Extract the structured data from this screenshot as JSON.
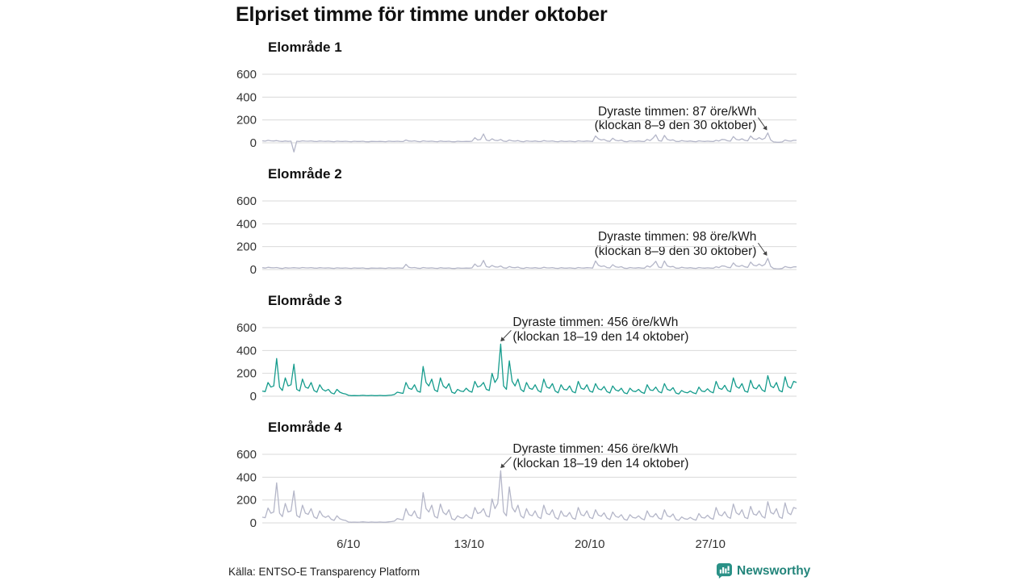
{
  "title": "Elpriset timme för timme under oktober",
  "source": "Källa: ENTSO-E Transparency Platform",
  "brand": {
    "name": "Newsworthy",
    "color": "#23857b",
    "icon": "bar-chart-speech-bubble"
  },
  "colors": {
    "line_gray": "#b4b6c8",
    "line_teal": "#169c8d",
    "grid": "#d9d9d9",
    "tick_text": "#333333",
    "annotation_text": "#1a1a1a"
  },
  "axis": {
    "yticks": [
      0,
      200,
      400,
      600
    ],
    "ylim": [
      0,
      600
    ],
    "total_hours": 744,
    "x_start": "1 oktober",
    "x_end": "31 oktober",
    "xticks": [
      {
        "label": "6/10",
        "hour": 120
      },
      {
        "label": "13/10",
        "hour": 288
      },
      {
        "label": "20/10",
        "hour": 456
      },
      {
        "label": "27/10",
        "hour": 624
      }
    ]
  },
  "chart_data": [
    {
      "type": "line",
      "title": "Elområde 1",
      "unit": "öre/kWh",
      "color_key": "line_gray",
      "hours_step": 4,
      "annotation": {
        "line1": "Dyraste timmen: 87 öre/kWh",
        "line2": "(klockan 8–9 den 30 oktober)",
        "peak_hour": 704,
        "peak_value": 87,
        "side": "right"
      },
      "values": [
        18,
        15,
        22,
        18,
        16,
        20,
        14,
        12,
        16,
        13,
        15,
        -80,
        14,
        12,
        18,
        15,
        14,
        17,
        13,
        11,
        16,
        14,
        13,
        15,
        12,
        10,
        15,
        13,
        12,
        14,
        11,
        10,
        14,
        12,
        12,
        14,
        10,
        9,
        13,
        12,
        11,
        13,
        11,
        10,
        15,
        13,
        12,
        14,
        12,
        11,
        25,
        16,
        14,
        18,
        12,
        10,
        18,
        14,
        13,
        15,
        11,
        10,
        16,
        13,
        12,
        14,
        10,
        9,
        14,
        12,
        11,
        13,
        12,
        14,
        45,
        25,
        30,
        78,
        25,
        18,
        35,
        22,
        20,
        30,
        15,
        12,
        25,
        18,
        15,
        20,
        12,
        10,
        18,
        14,
        13,
        16,
        12,
        11,
        20,
        15,
        14,
        17,
        11,
        10,
        16,
        13,
        12,
        15,
        12,
        10,
        18,
        14,
        13,
        16,
        14,
        12,
        60,
        35,
        25,
        30,
        16,
        13,
        40,
        22,
        18,
        24,
        12,
        10,
        18,
        14,
        13,
        16,
        13,
        11,
        30,
        20,
        40,
        70,
        20,
        15,
        65,
        30,
        22,
        26,
        13,
        11,
        20,
        15,
        13,
        16,
        12,
        10,
        18,
        14,
        12,
        15,
        13,
        11,
        22,
        16,
        30,
        28,
        18,
        15,
        55,
        30,
        25,
        35,
        22,
        18,
        60,
        35,
        30,
        45,
        30,
        40,
        87,
        25,
        8,
        6,
        5,
        8,
        25,
        18,
        15,
        22,
        22
      ]
    },
    {
      "type": "line",
      "title": "Elområde 2",
      "unit": "öre/kWh",
      "color_key": "line_gray",
      "hours_step": 4,
      "annotation": {
        "line1": "Dyraste timmen: 98 öre/kWh",
        "line2": "(klockan 8–9 den 30 oktober)",
        "peak_hour": 704,
        "peak_value": 98,
        "side": "right"
      },
      "values": [
        16,
        13,
        20,
        16,
        15,
        18,
        12,
        9,
        16,
        13,
        14,
        16,
        14,
        12,
        18,
        15,
        14,
        17,
        13,
        11,
        16,
        14,
        13,
        15,
        12,
        10,
        15,
        13,
        12,
        14,
        11,
        10,
        14,
        12,
        12,
        14,
        10,
        9,
        13,
        12,
        11,
        13,
        11,
        10,
        15,
        13,
        12,
        14,
        13,
        12,
        45,
        20,
        15,
        18,
        12,
        10,
        18,
        14,
        13,
        15,
        11,
        10,
        16,
        13,
        12,
        14,
        10,
        9,
        14,
        12,
        11,
        13,
        12,
        14,
        48,
        26,
        32,
        80,
        26,
        19,
        36,
        23,
        21,
        31,
        15,
        12,
        26,
        18,
        16,
        21,
        12,
        10,
        18,
        14,
        13,
        16,
        12,
        11,
        20,
        15,
        14,
        17,
        11,
        10,
        16,
        13,
        12,
        15,
        12,
        10,
        18,
        14,
        13,
        16,
        15,
        13,
        75,
        38,
        26,
        32,
        17,
        14,
        42,
        24,
        19,
        25,
        12,
        10,
        18,
        14,
        13,
        16,
        13,
        11,
        32,
        21,
        42,
        72,
        21,
        16,
        75,
        32,
        23,
        27,
        13,
        11,
        20,
        15,
        13,
        16,
        12,
        10,
        18,
        14,
        12,
        15,
        13,
        11,
        24,
        17,
        32,
        30,
        19,
        16,
        58,
        32,
        26,
        37,
        23,
        19,
        65,
        38,
        32,
        48,
        32,
        45,
        98,
        27,
        9,
        7,
        6,
        9,
        26,
        19,
        16,
        23,
        23
      ]
    },
    {
      "type": "line",
      "title": "Elområde 3",
      "unit": "öre/kWh",
      "color_key": "line_teal",
      "hours_step": 4,
      "annotation": {
        "line1": "Dyraste timmen: 456 öre/kWh",
        "line2": "(klockan 18–19 den 14 oktober)",
        "peak_hour": 332,
        "peak_value": 456,
        "side": "left"
      },
      "values": [
        45,
        40,
        120,
        80,
        90,
        330,
        80,
        50,
        160,
        90,
        100,
        280,
        60,
        45,
        150,
        80,
        70,
        120,
        50,
        35,
        100,
        60,
        45,
        60,
        30,
        20,
        60,
        35,
        25,
        20,
        8,
        5,
        6,
        5,
        6,
        8,
        6,
        5,
        7,
        5,
        5,
        7,
        5,
        5,
        8,
        10,
        15,
        35,
        30,
        25,
        120,
        70,
        60,
        100,
        45,
        35,
        260,
        120,
        90,
        150,
        55,
        40,
        160,
        90,
        70,
        110,
        35,
        25,
        60,
        45,
        40,
        70,
        45,
        35,
        130,
        80,
        90,
        120,
        60,
        50,
        200,
        120,
        160,
        456,
        90,
        60,
        310,
        130,
        90,
        150,
        60,
        40,
        120,
        70,
        60,
        100,
        50,
        35,
        150,
        80,
        70,
        110,
        45,
        30,
        100,
        60,
        55,
        90,
        40,
        30,
        130,
        70,
        60,
        100,
        45,
        35,
        110,
        65,
        55,
        85,
        40,
        28,
        90,
        55,
        45,
        70,
        30,
        22,
        70,
        45,
        40,
        60,
        35,
        25,
        100,
        55,
        50,
        80,
        40,
        30,
        110,
        60,
        50,
        75,
        28,
        20,
        50,
        35,
        30,
        45,
        30,
        22,
        80,
        45,
        40,
        65,
        40,
        30,
        130,
        70,
        60,
        95,
        50,
        38,
        160,
        85,
        70,
        110,
        45,
        35,
        140,
        75,
        65,
        100,
        55,
        40,
        180,
        90,
        75,
        120,
        50,
        38,
        170,
        85,
        70,
        130,
        120
      ]
    },
    {
      "type": "line",
      "title": "Elområde 4",
      "unit": "öre/kWh",
      "color_key": "line_gray",
      "hours_step": 4,
      "annotation": {
        "line1": "Dyraste timmen: 456 öre/kWh",
        "line2": "(klockan 18–19 den 14 oktober)",
        "peak_hour": 332,
        "peak_value": 456,
        "side": "left"
      },
      "values": [
        50,
        45,
        130,
        85,
        95,
        350,
        85,
        55,
        170,
        95,
        105,
        280,
        65,
        48,
        155,
        85,
        75,
        125,
        52,
        38,
        105,
        62,
        48,
        62,
        32,
        22,
        62,
        36,
        26,
        22,
        8,
        6,
        7,
        6,
        7,
        9,
        7,
        5,
        8,
        6,
        6,
        8,
        6,
        6,
        9,
        11,
        16,
        38,
        32,
        26,
        125,
        72,
        62,
        105,
        48,
        38,
        265,
        125,
        95,
        155,
        58,
        42,
        165,
        92,
        72,
        115,
        36,
        26,
        62,
        46,
        42,
        72,
        48,
        38,
        135,
        82,
        92,
        125,
        62,
        52,
        210,
        125,
        170,
        456,
        95,
        62,
        315,
        135,
        95,
        155,
        62,
        42,
        125,
        72,
        62,
        105,
        52,
        38,
        155,
        82,
        72,
        115,
        48,
        32,
        105,
        62,
        58,
        92,
        42,
        32,
        135,
        72,
        62,
        105,
        48,
        38,
        115,
        68,
        58,
        88,
        42,
        30,
        95,
        58,
        48,
        72,
        32,
        24,
        72,
        48,
        42,
        62,
        38,
        27,
        105,
        58,
        52,
        82,
        42,
        32,
        115,
        62,
        52,
        78,
        30,
        22,
        52,
        37,
        32,
        48,
        32,
        24,
        82,
        48,
        42,
        68,
        42,
        32,
        135,
        72,
        62,
        98,
        52,
        40,
        165,
        88,
        72,
        115,
        48,
        38,
        145,
        78,
        68,
        105,
        58,
        42,
        185,
        92,
        78,
        125,
        52,
        40,
        175,
        88,
        72,
        135,
        125
      ]
    }
  ]
}
